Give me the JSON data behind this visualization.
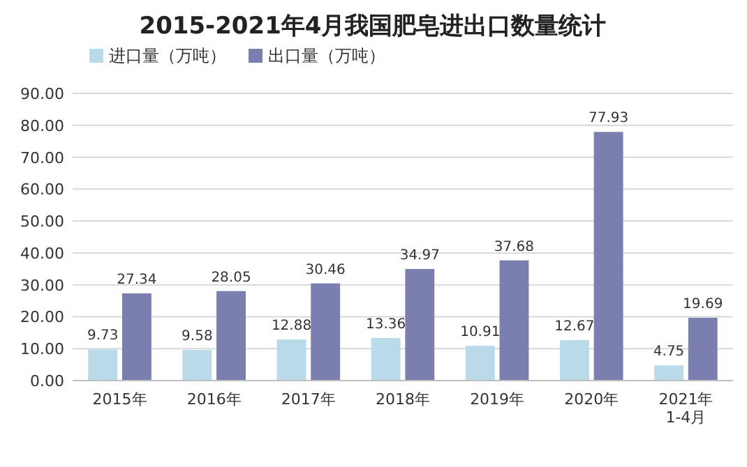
{
  "chart_data": {
    "type": "bar",
    "title": "2015-2021年4月我国肥皂进出口数量统计",
    "categories": [
      "2015年",
      "2016年",
      "2017年",
      "2018年",
      "2019年",
      "2020年",
      "2021年\n1-4月"
    ],
    "series": [
      {
        "name": "进口量（万吨）",
        "color": "#b9dbe9",
        "values": [
          9.73,
          9.58,
          12.88,
          13.36,
          10.91,
          12.67,
          4.75
        ]
      },
      {
        "name": "出口量（万吨）",
        "color": "#7b7fb0",
        "values": [
          27.34,
          28.05,
          30.46,
          34.97,
          37.68,
          77.93,
          19.69
        ]
      }
    ],
    "ylim": [
      0,
      90
    ],
    "yticks": [
      {
        "value": 0,
        "label": "0.00"
      },
      {
        "value": 10,
        "label": "10.00"
      },
      {
        "value": 20,
        "label": "20.00"
      },
      {
        "value": 30,
        "label": "30.00"
      },
      {
        "value": 40,
        "label": "40.00"
      },
      {
        "value": 50,
        "label": "50.00"
      },
      {
        "value": 60,
        "label": "60.00"
      },
      {
        "value": 70,
        "label": "70.00"
      },
      {
        "value": 80,
        "label": "80.00"
      },
      {
        "value": 90,
        "label": "90.00"
      }
    ],
    "grid": "y",
    "legend": "top left",
    "data_labels": true
  }
}
